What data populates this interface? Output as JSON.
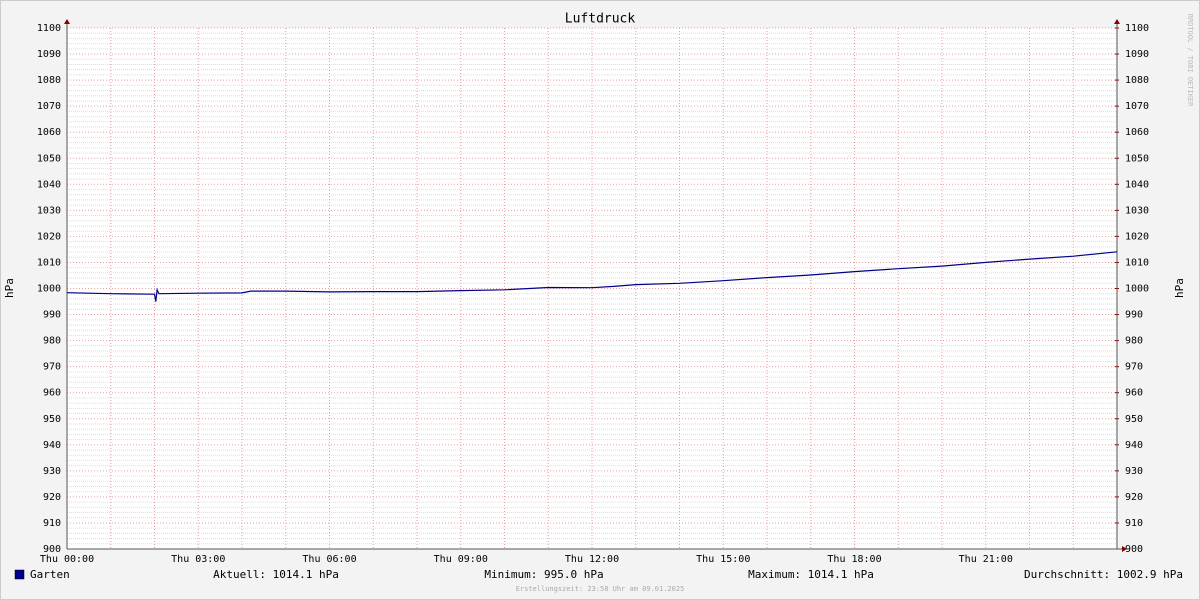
{
  "chart_data": {
    "type": "line",
    "title": "Luftdruck",
    "y_label": "hPa",
    "y2_label": "hPa",
    "x": [
      0,
      1,
      2,
      2.03,
      2.06,
      2.1,
      3,
      4,
      4.2,
      5,
      6,
      7,
      8,
      9,
      10,
      11,
      12,
      12.5,
      13,
      14,
      15,
      16,
      17,
      18,
      19,
      20,
      21,
      22,
      23,
      24
    ],
    "series": [
      {
        "name": "Garten",
        "color": "#00008b",
        "values": [
          998.4,
          998.0,
          997.8,
          995.0,
          999.5,
          998.0,
          998.2,
          998.3,
          999.0,
          999.0,
          998.7,
          998.8,
          998.8,
          999.2,
          999.5,
          1000.4,
          1000.3,
          1000.8,
          1001.5,
          1002.0,
          1003.0,
          1004.2,
          1005.2,
          1006.5,
          1007.6,
          1008.6,
          1010.0,
          1011.3,
          1012.4,
          1014.1
        ]
      }
    ],
    "xlim": [
      0,
      24
    ],
    "xticks": [
      {
        "value": 0,
        "label": "Thu 00:00"
      },
      {
        "value": 3,
        "label": "Thu 03:00"
      },
      {
        "value": 6,
        "label": "Thu 06:00"
      },
      {
        "value": 9,
        "label": "Thu 09:00"
      },
      {
        "value": 12,
        "label": "Thu 12:00"
      },
      {
        "value": 15,
        "label": "Thu 15:00"
      },
      {
        "value": 18,
        "label": "Thu 18:00"
      },
      {
        "value": 21,
        "label": "Thu 21:00"
      }
    ],
    "ylim": [
      900,
      1100
    ],
    "yticks": [
      900,
      910,
      920,
      930,
      940,
      950,
      960,
      970,
      980,
      990,
      1000,
      1010,
      1020,
      1030,
      1040,
      1050,
      1060,
      1070,
      1080,
      1090,
      1100
    ],
    "y2lim": [
      900,
      1100
    ],
    "y2ticks": [
      900,
      910,
      920,
      930,
      940,
      950,
      960,
      970,
      980,
      990,
      1000,
      1010,
      1020,
      1030,
      1040,
      1050,
      1060,
      1070,
      1080,
      1090,
      1100
    ],
    "grid": true,
    "stats": [
      "Aktuell: 1014.1 hPa",
      "Minimum: 995.0 hPa",
      "Maximum: 1014.1 hPa",
      "Durchschnitt: 1002.9 hPa"
    ],
    "footer": "Erstellungszeit: 23:58 Uhr am 09.01.2025",
    "watermark": "RRDTOOL / TOBI OETIKER"
  }
}
